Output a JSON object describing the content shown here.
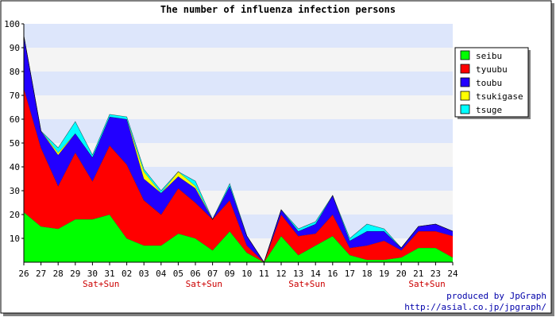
{
  "chart_data": {
    "type": "area",
    "stacked": true,
    "title": "The number of influenza infection persons",
    "xlabel": "",
    "ylabel": "",
    "ylim": [
      0,
      100
    ],
    "yticks": [
      10,
      20,
      30,
      40,
      50,
      60,
      70,
      80,
      90,
      100
    ],
    "grid": "horizontal bands",
    "legend_position": "top-right",
    "categories": [
      "26",
      "27",
      "28",
      "29",
      "30",
      "31",
      "02",
      "03",
      "04",
      "05",
      "06",
      "07",
      "09",
      "10",
      "11",
      "12",
      "13",
      "14",
      "16",
      "17",
      "18",
      "19",
      "20",
      "21",
      "23",
      "24"
    ],
    "weekend_marks": [
      {
        "category": "30",
        "label": "Sat+Sun"
      },
      {
        "category": "06",
        "label": "Sat+Sun"
      },
      {
        "category": "13",
        "label": "Sat+Sun"
      },
      {
        "category": "21",
        "label": "Sat+Sun"
      }
    ],
    "series": [
      {
        "name": "seibu",
        "color": "#00ff00",
        "values": [
          21,
          15,
          14,
          18,
          18,
          20,
          10,
          7,
          7,
          12,
          10,
          5,
          13,
          4,
          0,
          11,
          3,
          7,
          11,
          3,
          1,
          1,
          2,
          6,
          6,
          2
        ]
      },
      {
        "name": "tyuubu",
        "color": "#ff0000",
        "values": [
          52,
          33,
          18,
          28,
          16,
          29,
          31,
          19,
          13,
          19,
          15,
          13,
          13,
          3,
          0,
          9,
          8,
          5,
          9,
          3,
          6,
          8,
          3,
          7,
          7,
          9
        ]
      },
      {
        "name": "toubu",
        "color": "#2200ff",
        "values": [
          22,
          7,
          13,
          8,
          10,
          12,
          19,
          9,
          9,
          5,
          6,
          0,
          6,
          4,
          0,
          2,
          2,
          4,
          8,
          3,
          6,
          4,
          1,
          2,
          3,
          2
        ]
      },
      {
        "name": "tsukigase",
        "color": "#ffff00",
        "values": [
          0,
          0,
          1,
          0,
          0,
          0,
          0,
          3,
          0,
          2,
          1,
          0,
          0,
          0,
          0,
          0,
          0,
          0,
          0,
          0,
          0,
          0,
          0,
          0,
          0,
          0
        ]
      },
      {
        "name": "tsuge",
        "color": "#00ffff",
        "values": [
          0,
          0,
          2,
          5,
          1,
          1,
          1,
          1,
          1,
          0,
          2,
          0,
          1,
          0,
          0,
          0,
          1,
          1,
          0,
          1,
          3,
          1,
          0,
          0,
          0,
          0
        ]
      }
    ]
  },
  "credits": {
    "line1": "produced by JpGraph",
    "line2": "http://asial.co.jp/jpgraph/"
  }
}
